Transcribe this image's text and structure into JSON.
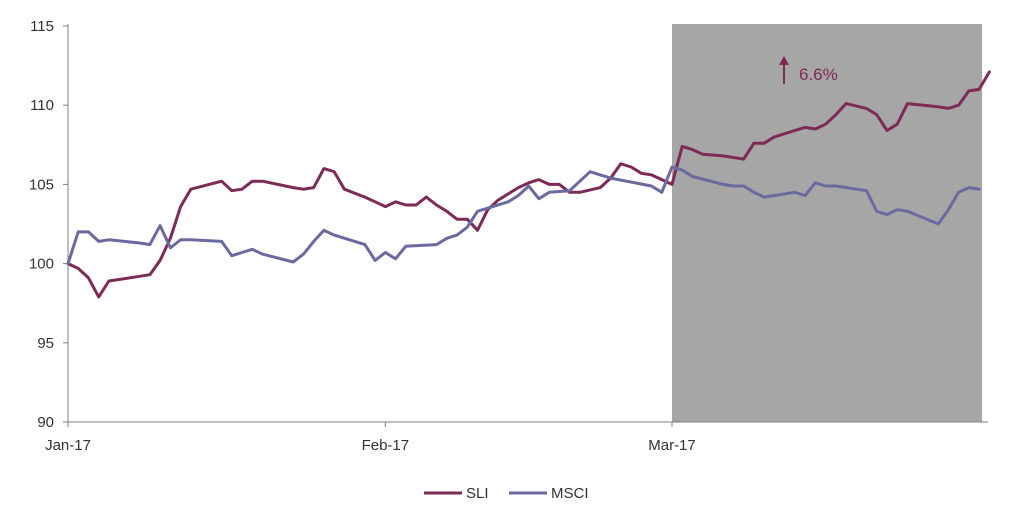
{
  "chart_data": {
    "type": "line",
    "title": "",
    "xlabel": "",
    "ylabel": "",
    "ylim": [
      90,
      115
    ],
    "yticks": [
      90,
      95,
      100,
      105,
      110,
      115
    ],
    "xlim": [
      "2017-01-01",
      "2017-03-31"
    ],
    "xticks": [
      {
        "date": "2017-01-01",
        "label": "Jan-17"
      },
      {
        "date": "2017-02-01",
        "label": "Feb-17"
      },
      {
        "date": "2017-03-01",
        "label": "Mar-17"
      }
    ],
    "grid": false,
    "legend_position": "bottom-center",
    "highlight_region": {
      "x_start": "2017-03-01",
      "x_end": "2017-03-31",
      "color": "#a6a6a6"
    },
    "annotation": {
      "text": "6.6%",
      "icon": "up-arrow-icon",
      "color": "#7d2a57"
    },
    "series": [
      {
        "name": "SLI",
        "color": "#7d2a57",
        "points": [
          [
            "2017-01-01",
            100.0
          ],
          [
            "2017-01-02",
            99.7
          ],
          [
            "2017-01-03",
            99.1
          ],
          [
            "2017-01-04",
            97.9
          ],
          [
            "2017-01-05",
            98.9
          ],
          [
            "2017-01-08",
            99.2
          ],
          [
            "2017-01-09",
            99.3
          ],
          [
            "2017-01-10",
            100.2
          ],
          [
            "2017-01-11",
            101.6
          ],
          [
            "2017-01-12",
            103.6
          ],
          [
            "2017-01-13",
            104.7
          ],
          [
            "2017-01-16",
            105.2
          ],
          [
            "2017-01-17",
            104.6
          ],
          [
            "2017-01-18",
            104.7
          ],
          [
            "2017-01-19",
            105.2
          ],
          [
            "2017-01-20",
            105.2
          ],
          [
            "2017-01-23",
            104.8
          ],
          [
            "2017-01-24",
            104.7
          ],
          [
            "2017-01-25",
            104.8
          ],
          [
            "2017-01-26",
            106.0
          ],
          [
            "2017-01-27",
            105.8
          ],
          [
            "2017-01-28",
            104.7
          ],
          [
            "2017-01-30",
            104.2
          ],
          [
            "2017-01-31",
            103.9
          ],
          [
            "2017-02-01",
            103.6
          ],
          [
            "2017-02-02",
            103.9
          ],
          [
            "2017-02-03",
            103.7
          ],
          [
            "2017-02-04",
            103.7
          ],
          [
            "2017-02-05",
            104.2
          ],
          [
            "2017-02-06",
            103.7
          ],
          [
            "2017-02-07",
            103.3
          ],
          [
            "2017-02-08",
            102.8
          ],
          [
            "2017-02-09",
            102.8
          ],
          [
            "2017-02-10",
            102.1
          ],
          [
            "2017-02-11",
            103.4
          ],
          [
            "2017-02-12",
            104.0
          ],
          [
            "2017-02-13",
            104.4
          ],
          [
            "2017-02-14",
            104.8
          ],
          [
            "2017-02-15",
            105.1
          ],
          [
            "2017-02-16",
            105.3
          ],
          [
            "2017-02-17",
            105.0
          ],
          [
            "2017-02-18",
            105.0
          ],
          [
            "2017-02-19",
            104.5
          ],
          [
            "2017-02-20",
            104.5
          ],
          [
            "2017-02-22",
            104.8
          ],
          [
            "2017-02-23",
            105.4
          ],
          [
            "2017-02-24",
            106.3
          ],
          [
            "2017-02-25",
            106.1
          ],
          [
            "2017-02-26",
            105.7
          ],
          [
            "2017-02-27",
            105.6
          ],
          [
            "2017-02-28",
            105.3
          ],
          [
            "2017-03-01",
            105.0
          ],
          [
            "2017-03-02",
            107.4
          ],
          [
            "2017-03-03",
            107.2
          ],
          [
            "2017-03-04",
            106.9
          ],
          [
            "2017-03-06",
            106.8
          ],
          [
            "2017-03-07",
            106.7
          ],
          [
            "2017-03-08",
            106.6
          ],
          [
            "2017-03-09",
            107.6
          ],
          [
            "2017-03-10",
            107.6
          ],
          [
            "2017-03-11",
            108.0
          ],
          [
            "2017-03-13",
            108.4
          ],
          [
            "2017-03-14",
            108.6
          ],
          [
            "2017-03-15",
            108.5
          ],
          [
            "2017-03-16",
            108.8
          ],
          [
            "2017-03-17",
            109.4
          ],
          [
            "2017-03-18",
            110.1
          ],
          [
            "2017-03-20",
            109.8
          ],
          [
            "2017-03-21",
            109.4
          ],
          [
            "2017-03-22",
            108.4
          ],
          [
            "2017-03-23",
            108.8
          ],
          [
            "2017-03-24",
            110.1
          ],
          [
            "2017-03-27",
            109.9
          ],
          [
            "2017-03-28",
            109.8
          ],
          [
            "2017-03-29",
            110.0
          ],
          [
            "2017-03-30",
            110.9
          ],
          [
            "2017-03-31",
            111.0
          ],
          [
            "2017-04-01",
            112.1
          ]
        ]
      },
      {
        "name": "MSCI",
        "color": "#6a6aa0",
        "points": [
          [
            "2017-01-01",
            100.0
          ],
          [
            "2017-01-02",
            102.0
          ],
          [
            "2017-01-03",
            102.0
          ],
          [
            "2017-01-04",
            101.4
          ],
          [
            "2017-01-05",
            101.5
          ],
          [
            "2017-01-08",
            101.3
          ],
          [
            "2017-01-09",
            101.2
          ],
          [
            "2017-01-10",
            102.4
          ],
          [
            "2017-01-11",
            101.0
          ],
          [
            "2017-01-12",
            101.5
          ],
          [
            "2017-01-13",
            101.5
          ],
          [
            "2017-01-16",
            101.4
          ],
          [
            "2017-01-17",
            100.5
          ],
          [
            "2017-01-18",
            100.7
          ],
          [
            "2017-01-19",
            100.9
          ],
          [
            "2017-01-20",
            100.6
          ],
          [
            "2017-01-23",
            100.1
          ],
          [
            "2017-01-24",
            100.6
          ],
          [
            "2017-01-25",
            101.4
          ],
          [
            "2017-01-26",
            102.1
          ],
          [
            "2017-01-27",
            101.8
          ],
          [
            "2017-01-30",
            101.2
          ],
          [
            "2017-01-31",
            100.2
          ],
          [
            "2017-02-01",
            100.7
          ],
          [
            "2017-02-02",
            100.3
          ],
          [
            "2017-02-03",
            101.1
          ],
          [
            "2017-02-06",
            101.2
          ],
          [
            "2017-02-07",
            101.6
          ],
          [
            "2017-02-08",
            101.8
          ],
          [
            "2017-02-09",
            102.3
          ],
          [
            "2017-02-10",
            103.3
          ],
          [
            "2017-02-13",
            103.9
          ],
          [
            "2017-02-14",
            104.3
          ],
          [
            "2017-02-15",
            104.9
          ],
          [
            "2017-02-16",
            104.1
          ],
          [
            "2017-02-17",
            104.5
          ],
          [
            "2017-02-19",
            104.6
          ],
          [
            "2017-02-21",
            105.8
          ],
          [
            "2017-02-22",
            105.6
          ],
          [
            "2017-02-23",
            105.4
          ],
          [
            "2017-02-27",
            104.9
          ],
          [
            "2017-02-28",
            104.5
          ],
          [
            "2017-03-01",
            106.1
          ],
          [
            "2017-03-02",
            105.9
          ],
          [
            "2017-03-03",
            105.5
          ],
          [
            "2017-03-06",
            105.0
          ],
          [
            "2017-03-07",
            104.9
          ],
          [
            "2017-03-08",
            104.9
          ],
          [
            "2017-03-09",
            104.5
          ],
          [
            "2017-03-10",
            104.2
          ],
          [
            "2017-03-13",
            104.5
          ],
          [
            "2017-03-14",
            104.3
          ],
          [
            "2017-03-15",
            105.1
          ],
          [
            "2017-03-16",
            104.9
          ],
          [
            "2017-03-17",
            104.9
          ],
          [
            "2017-03-20",
            104.6
          ],
          [
            "2017-03-21",
            103.3
          ],
          [
            "2017-03-22",
            103.1
          ],
          [
            "2017-03-23",
            103.4
          ],
          [
            "2017-03-24",
            103.3
          ],
          [
            "2017-03-27",
            102.5
          ],
          [
            "2017-03-28",
            103.4
          ],
          [
            "2017-03-29",
            104.5
          ],
          [
            "2017-03-30",
            104.8
          ],
          [
            "2017-03-31",
            104.7
          ]
        ]
      }
    ]
  }
}
